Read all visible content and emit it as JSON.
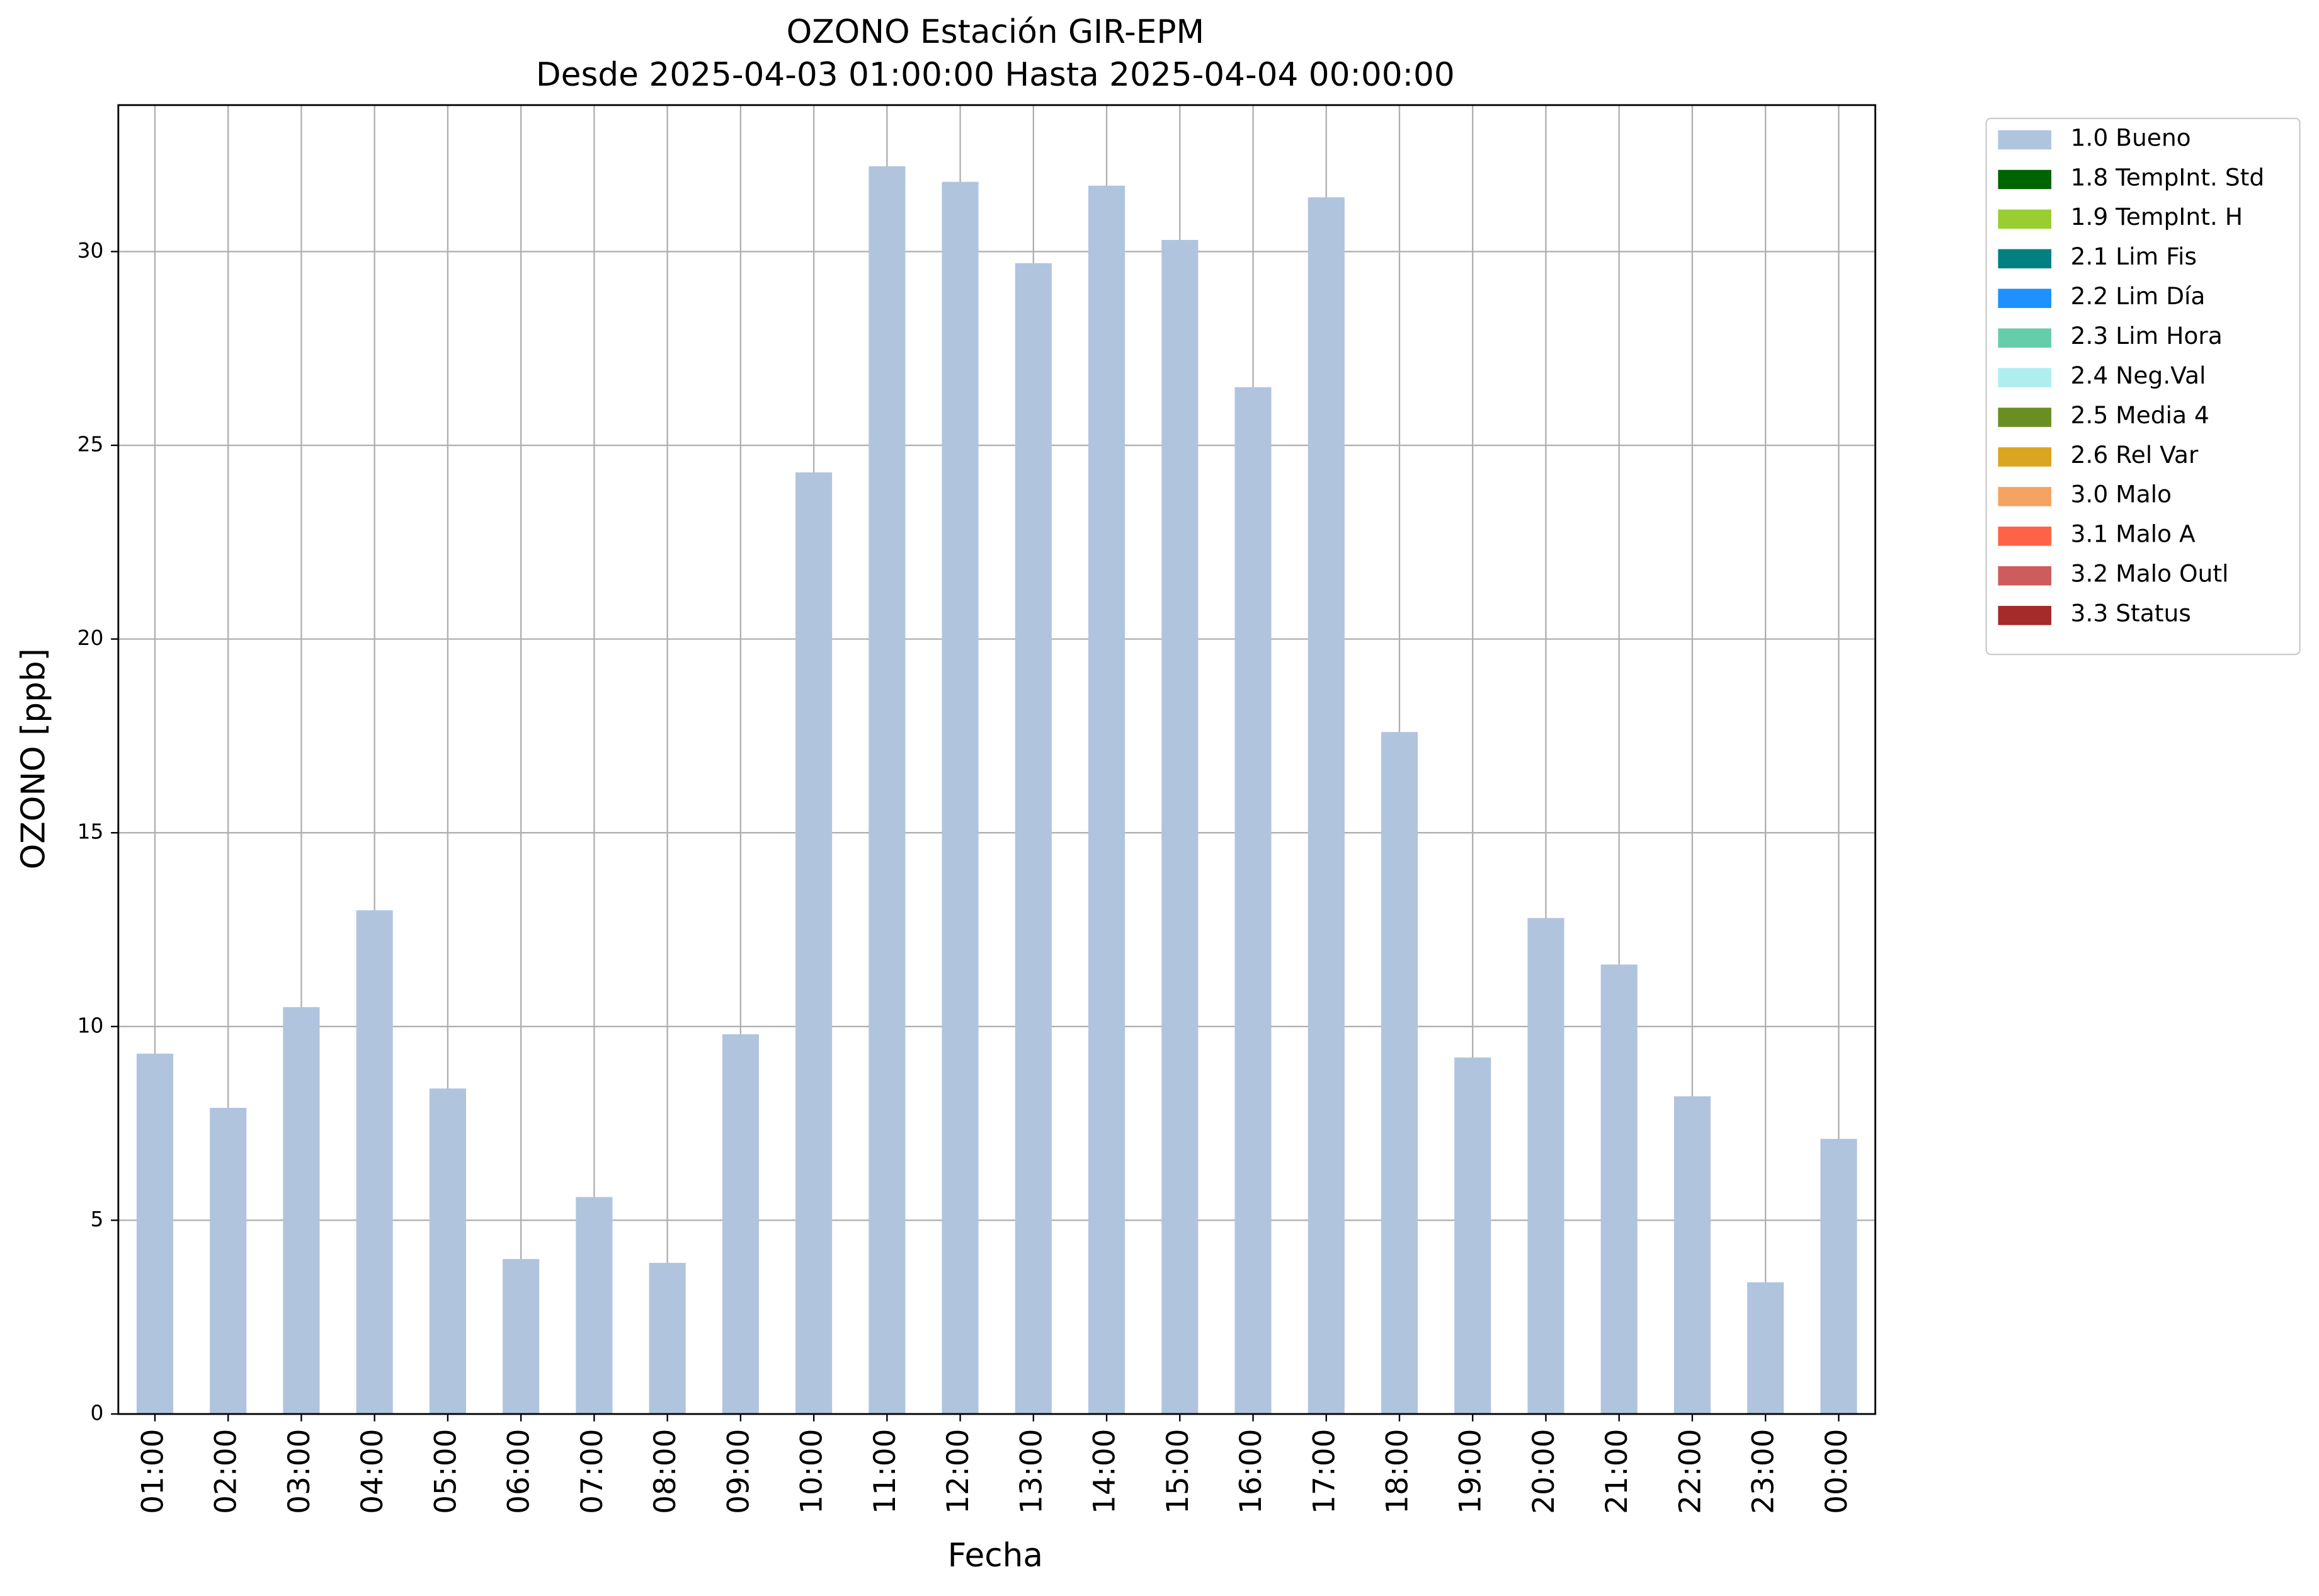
{
  "chart_data": {
    "type": "bar",
    "stacked": true,
    "title": "OZONO Estación GIR-EPM",
    "subtitle": "Desde 2025-04-03 01:00:00 Hasta 2025-04-04 00:00:00",
    "x_label": "Fecha",
    "y_label": "OZONO [ppb]",
    "categories": [
      "01:00",
      "02:00",
      "03:00",
      "04:00",
      "05:00",
      "06:00",
      "07:00",
      "08:00",
      "09:00",
      "10:00",
      "11:00",
      "12:00",
      "13:00",
      "14:00",
      "15:00",
      "16:00",
      "17:00",
      "18:00",
      "19:00",
      "20:00",
      "21:00",
      "22:00",
      "23:00",
      "00:00"
    ],
    "series": [
      {
        "name": "1.0 Bueno",
        "color": "#b0c4de",
        "values": [
          9.3,
          7.9,
          10.5,
          13.0,
          8.4,
          4.0,
          5.6,
          3.9,
          9.8,
          24.3,
          32.2,
          31.8,
          29.7,
          31.7,
          30.3,
          26.5,
          31.4,
          17.6,
          9.2,
          12.8,
          11.6,
          8.2,
          3.4,
          7.1
        ]
      },
      {
        "name": "1.8 TempInt. Std",
        "color": "#006400",
        "values": [
          0,
          0,
          0,
          0,
          0,
          0,
          0,
          0,
          0,
          0,
          0,
          0,
          0,
          0,
          0,
          0,
          0,
          0,
          0,
          0,
          0,
          0,
          0,
          0
        ]
      },
      {
        "name": "1.9 TempInt. H",
        "color": "#9acd32",
        "values": [
          0,
          0,
          0,
          0,
          0,
          0,
          0,
          0,
          0,
          0,
          0,
          0,
          0,
          0,
          0,
          0,
          0,
          0,
          0,
          0,
          0,
          0,
          0,
          0
        ]
      },
      {
        "name": "2.1 Lim Fis",
        "color": "#008080",
        "values": [
          0,
          0,
          0,
          0,
          0,
          0,
          0,
          0,
          0,
          0,
          0,
          0,
          0,
          0,
          0,
          0,
          0,
          0,
          0,
          0,
          0,
          0,
          0,
          0
        ]
      },
      {
        "name": "2.2 Lim Día",
        "color": "#1e90ff",
        "values": [
          0,
          0,
          0,
          0,
          0,
          0,
          0,
          0,
          0,
          0,
          0,
          0,
          0,
          0,
          0,
          0,
          0,
          0,
          0,
          0,
          0,
          0,
          0,
          0
        ]
      },
      {
        "name": "2.3 Lim Hora",
        "color": "#66cdaa",
        "values": [
          0,
          0,
          0,
          0,
          0,
          0,
          0,
          0,
          0,
          0,
          0,
          0,
          0,
          0,
          0,
          0,
          0,
          0,
          0,
          0,
          0,
          0,
          0,
          0
        ]
      },
      {
        "name": "2.4 Neg.Val",
        "color": "#afeeee",
        "values": [
          0,
          0,
          0,
          0,
          0,
          0,
          0,
          0,
          0,
          0,
          0,
          0,
          0,
          0,
          0,
          0,
          0,
          0,
          0,
          0,
          0,
          0,
          0,
          0
        ]
      },
      {
        "name": "2.5 Media 4",
        "color": "#6b8e23",
        "values": [
          0,
          0,
          0,
          0,
          0,
          0,
          0,
          0,
          0,
          0,
          0,
          0,
          0,
          0,
          0,
          0,
          0,
          0,
          0,
          0,
          0,
          0,
          0,
          0
        ]
      },
      {
        "name": "2.6 Rel Var",
        "color": "#daa520",
        "values": [
          0,
          0,
          0,
          0,
          0,
          0,
          0,
          0,
          0,
          0,
          0,
          0,
          0,
          0,
          0,
          0,
          0,
          0,
          0,
          0,
          0,
          0,
          0,
          0
        ]
      },
      {
        "name": "3.0 Malo",
        "color": "#f4a460",
        "values": [
          0,
          0,
          0,
          0,
          0,
          0,
          0,
          0,
          0,
          0,
          0,
          0,
          0,
          0,
          0,
          0,
          0,
          0,
          0,
          0,
          0,
          0,
          0,
          0
        ]
      },
      {
        "name": "3.1 Malo A",
        "color": "#ff6347",
        "values": [
          0,
          0,
          0,
          0,
          0,
          0,
          0,
          0,
          0,
          0,
          0,
          0,
          0,
          0,
          0,
          0,
          0,
          0,
          0,
          0,
          0,
          0,
          0,
          0
        ]
      },
      {
        "name": "3.2 Malo Outl",
        "color": "#cd5c5c",
        "values": [
          0,
          0,
          0,
          0,
          0,
          0,
          0,
          0,
          0,
          0,
          0,
          0,
          0,
          0,
          0,
          0,
          0,
          0,
          0,
          0,
          0,
          0,
          0,
          0
        ]
      },
      {
        "name": "3.3 Status",
        "color": "#a52a2a",
        "values": [
          0,
          0,
          0,
          0,
          0,
          0,
          0,
          0,
          0,
          0,
          0,
          0,
          0,
          0,
          0,
          0,
          0,
          0,
          0,
          0,
          0,
          0,
          0,
          0
        ]
      }
    ],
    "ylim": [
      0,
      33.78
    ],
    "yticks": [
      0,
      5,
      10,
      15,
      20,
      25,
      30
    ],
    "grid": true,
    "legend": "outside-right"
  }
}
